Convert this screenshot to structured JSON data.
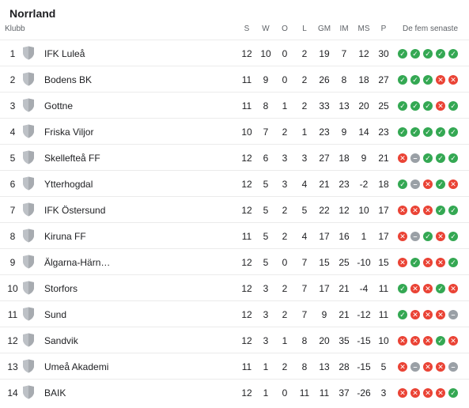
{
  "title": "Norrland",
  "columns": {
    "club": "Klubb",
    "s": "S",
    "w": "W",
    "o": "O",
    "l": "L",
    "gm": "GM",
    "im": "IM",
    "ms": "MS",
    "p": "P",
    "form": "De fem senaste"
  },
  "colors": {
    "win": "#34a853",
    "loss": "#ea4335",
    "draw": "#9aa0a6"
  },
  "rows": [
    {
      "pos": "1",
      "team": "IFK Luleå",
      "s": "12",
      "w": "10",
      "o": "0",
      "l": "2",
      "gm": "19",
      "im": "7",
      "ms": "12",
      "p": "30",
      "form": [
        "W",
        "W",
        "W",
        "W",
        "W"
      ]
    },
    {
      "pos": "2",
      "team": "Bodens BK",
      "s": "11",
      "w": "9",
      "o": "0",
      "l": "2",
      "gm": "26",
      "im": "8",
      "ms": "18",
      "p": "27",
      "form": [
        "W",
        "W",
        "W",
        "L",
        "L"
      ]
    },
    {
      "pos": "3",
      "team": "Gottne",
      "s": "11",
      "w": "8",
      "o": "1",
      "l": "2",
      "gm": "33",
      "im": "13",
      "ms": "20",
      "p": "25",
      "form": [
        "W",
        "W",
        "W",
        "L",
        "W"
      ]
    },
    {
      "pos": "4",
      "team": "Friska Viljor",
      "s": "10",
      "w": "7",
      "o": "2",
      "l": "1",
      "gm": "23",
      "im": "9",
      "ms": "14",
      "p": "23",
      "form": [
        "W",
        "W",
        "W",
        "W",
        "W"
      ]
    },
    {
      "pos": "5",
      "team": "Skellefteå FF",
      "s": "12",
      "w": "6",
      "o": "3",
      "l": "3",
      "gm": "27",
      "im": "18",
      "ms": "9",
      "p": "21",
      "form": [
        "L",
        "D",
        "W",
        "W",
        "W"
      ]
    },
    {
      "pos": "6",
      "team": "Ytterhogdal",
      "s": "12",
      "w": "5",
      "o": "3",
      "l": "4",
      "gm": "21",
      "im": "23",
      "ms": "-2",
      "p": "18",
      "form": [
        "W",
        "D",
        "L",
        "W",
        "L"
      ]
    },
    {
      "pos": "7",
      "team": "IFK Östersund",
      "s": "12",
      "w": "5",
      "o": "2",
      "l": "5",
      "gm": "22",
      "im": "12",
      "ms": "10",
      "p": "17",
      "form": [
        "L",
        "L",
        "L",
        "W",
        "W"
      ]
    },
    {
      "pos": "8",
      "team": "Kiruna FF",
      "s": "11",
      "w": "5",
      "o": "2",
      "l": "4",
      "gm": "17",
      "im": "16",
      "ms": "1",
      "p": "17",
      "form": [
        "L",
        "D",
        "W",
        "L",
        "W"
      ]
    },
    {
      "pos": "9",
      "team": "Älgarna-Härn…",
      "s": "12",
      "w": "5",
      "o": "0",
      "l": "7",
      "gm": "15",
      "im": "25",
      "ms": "-10",
      "p": "15",
      "form": [
        "L",
        "W",
        "L",
        "L",
        "W"
      ]
    },
    {
      "pos": "10",
      "team": "Storfors",
      "s": "12",
      "w": "3",
      "o": "2",
      "l": "7",
      "gm": "17",
      "im": "21",
      "ms": "-4",
      "p": "11",
      "form": [
        "W",
        "L",
        "L",
        "W",
        "L"
      ]
    },
    {
      "pos": "11",
      "team": "Sund",
      "s": "12",
      "w": "3",
      "o": "2",
      "l": "7",
      "gm": "9",
      "im": "21",
      "ms": "-12",
      "p": "11",
      "form": [
        "W",
        "L",
        "L",
        "L",
        "D"
      ]
    },
    {
      "pos": "12",
      "team": "Sandvik",
      "s": "12",
      "w": "3",
      "o": "1",
      "l": "8",
      "gm": "20",
      "im": "35",
      "ms": "-15",
      "p": "10",
      "form": [
        "L",
        "L",
        "L",
        "W",
        "L"
      ]
    },
    {
      "pos": "13",
      "team": "Umeå Akademi",
      "s": "11",
      "w": "1",
      "o": "2",
      "l": "8",
      "gm": "13",
      "im": "28",
      "ms": "-15",
      "p": "5",
      "form": [
        "L",
        "D",
        "L",
        "L",
        "D"
      ]
    },
    {
      "pos": "14",
      "team": "BAIK",
      "s": "12",
      "w": "1",
      "o": "0",
      "l": "11",
      "gm": "11",
      "im": "37",
      "ms": "-26",
      "p": "3",
      "form": [
        "L",
        "L",
        "L",
        "L",
        "W"
      ]
    }
  ]
}
